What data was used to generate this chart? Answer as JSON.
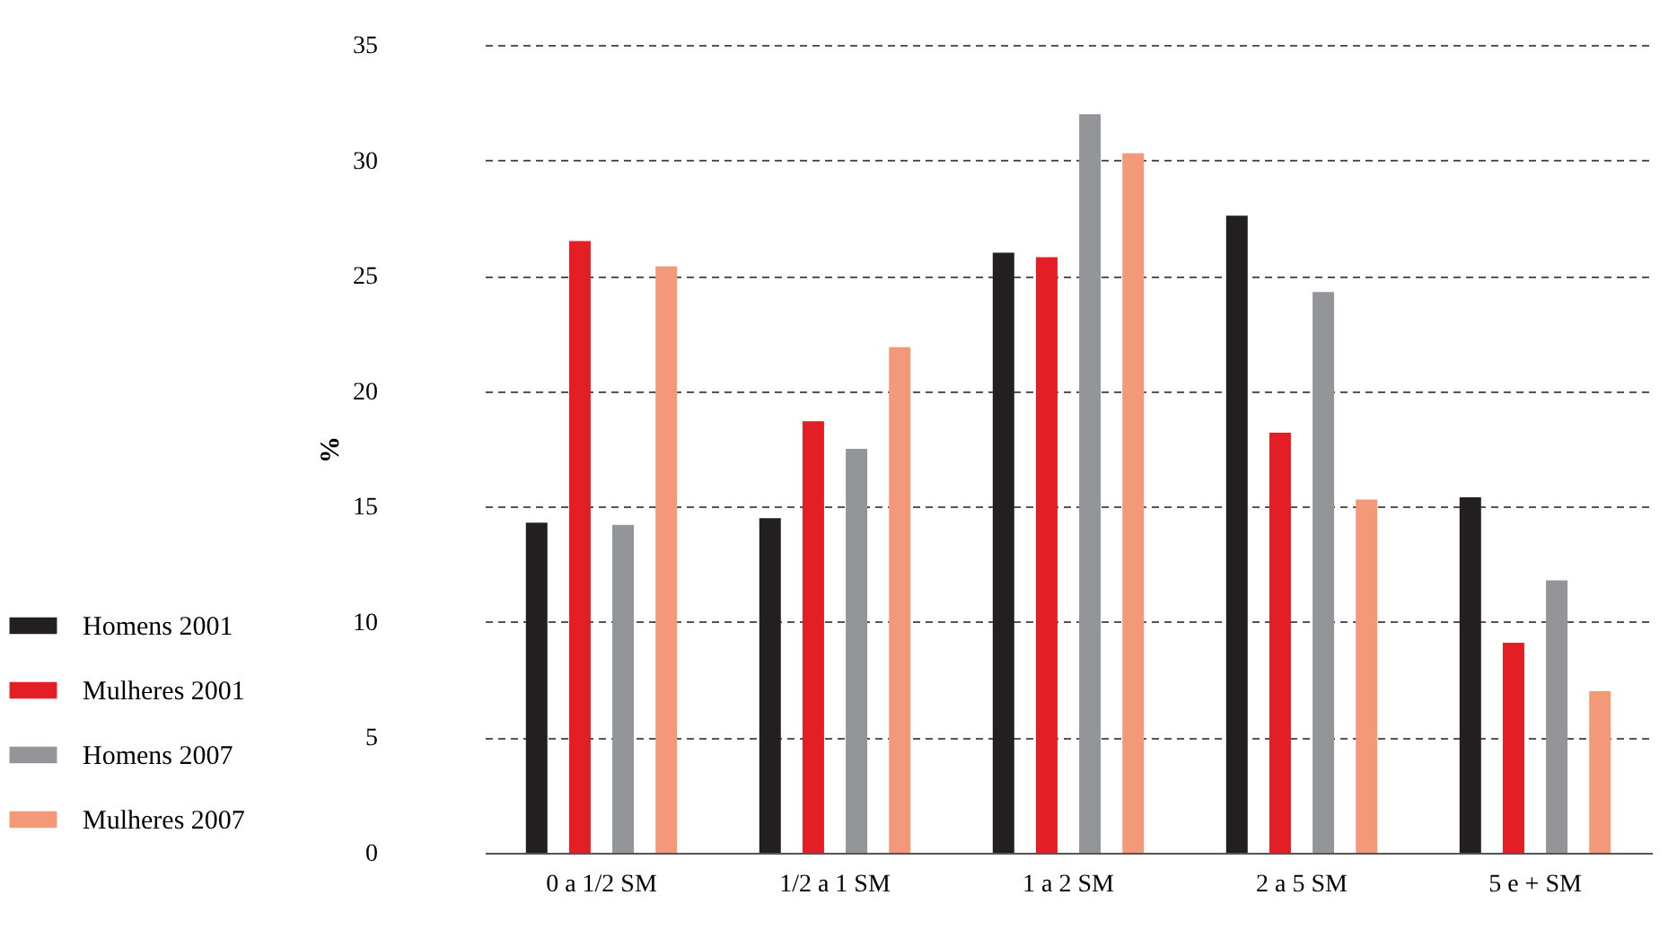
{
  "chart_data": {
    "type": "bar",
    "ylabel": "%",
    "categories": [
      "0 a 1/2 SM",
      "1/2 a 1 SM",
      "1 a 2 SM",
      "2 a 5 SM",
      "5 e + SM"
    ],
    "series": [
      {
        "name": "Homens 2001",
        "color": "#231f20",
        "values": [
          14.3,
          14.5,
          26.0,
          27.6,
          15.4
        ]
      },
      {
        "name": "Mulheres 2001",
        "color": "#e31e24",
        "values": [
          26.5,
          18.7,
          25.8,
          18.2,
          9.1
        ]
      },
      {
        "name": "Homens 2007",
        "color": "#939598",
        "values": [
          14.2,
          17.5,
          32.0,
          24.3,
          11.8
        ]
      },
      {
        "name": "Mulheres 2007",
        "color": "#f4987a",
        "values": [
          25.4,
          21.9,
          30.3,
          15.3,
          7.0
        ]
      }
    ],
    "ylim": [
      0,
      35
    ],
    "yticks": [
      0,
      5,
      10,
      15,
      20,
      25,
      30,
      35
    ],
    "grid": "y",
    "legend": "bottom left"
  }
}
